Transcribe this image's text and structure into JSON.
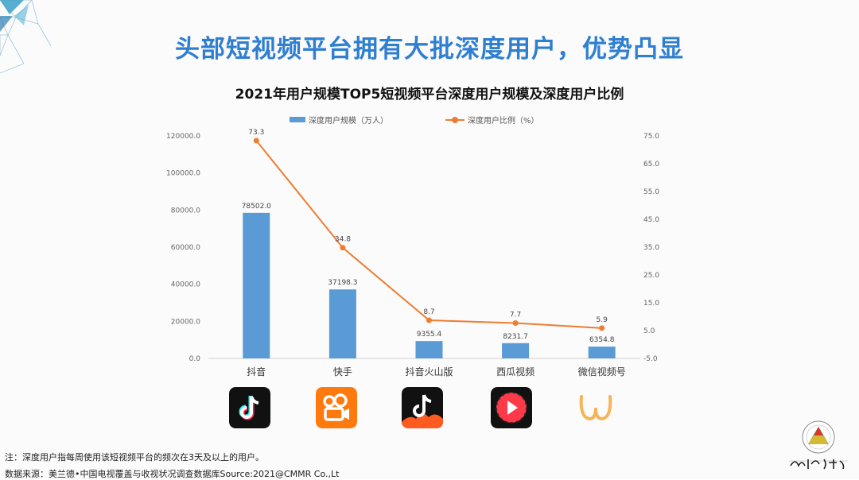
{
  "headline": "头部短视频平台拥有大批深度用户，优势凸显",
  "chart_data": {
    "type": "bar",
    "title": "2021年用户规模TOP5短视频平台深度用户规模及深度用户比例",
    "categories": [
      "抖音",
      "快手",
      "抖音火山版",
      "西瓜视频",
      "微信视频号"
    ],
    "series": [
      {
        "name": "深度用户规模（万人）",
        "type": "bar",
        "axis": "left",
        "color": "#5b9bd5",
        "values": [
          78502.0,
          37198.3,
          9355.4,
          8231.7,
          6354.8
        ],
        "labels": [
          "78502.0",
          "37198.3",
          "9355.4",
          "8231.7",
          "6354.8"
        ]
      },
      {
        "name": "深度用户比例（%）",
        "type": "line",
        "axis": "right",
        "color": "#ed7d31",
        "values": [
          73.3,
          34.8,
          8.7,
          7.7,
          5.9
        ],
        "labels": [
          "73.3",
          "34.8",
          "8.7",
          "7.7",
          "5.9"
        ]
      }
    ],
    "y_left": {
      "min": 0,
      "max": 120000,
      "ticks": [
        0,
        20000,
        40000,
        60000,
        80000,
        100000,
        120000
      ],
      "tick_labels": [
        "0.0",
        "20000.0",
        "40000.0",
        "60000.0",
        "80000.0",
        "100000.0",
        "120000.0"
      ]
    },
    "y_right": {
      "min": -5,
      "max": 75,
      "ticks": [
        -5,
        5,
        15,
        25,
        35,
        45,
        55,
        65,
        75
      ],
      "tick_labels": [
        "-5.0",
        "5.0",
        "15.0",
        "25.0",
        "35.0",
        "45.0",
        "55.0",
        "65.0",
        "75.0"
      ]
    },
    "grid": false,
    "legend_position": "top"
  },
  "icons": [
    "douyin-icon",
    "kuaishou-icon",
    "douyin-huoshan-icon",
    "xigua-video-icon",
    "wechat-channels-icon"
  ],
  "notes": {
    "note": "注：深度用户指每周使用该短视频平台的频次在3天及以上的用户。",
    "source": "数据来源：美兰德•中国电视覆盖与收视状况调查数据库Source:2021@CMMR Co.,Lt"
  }
}
